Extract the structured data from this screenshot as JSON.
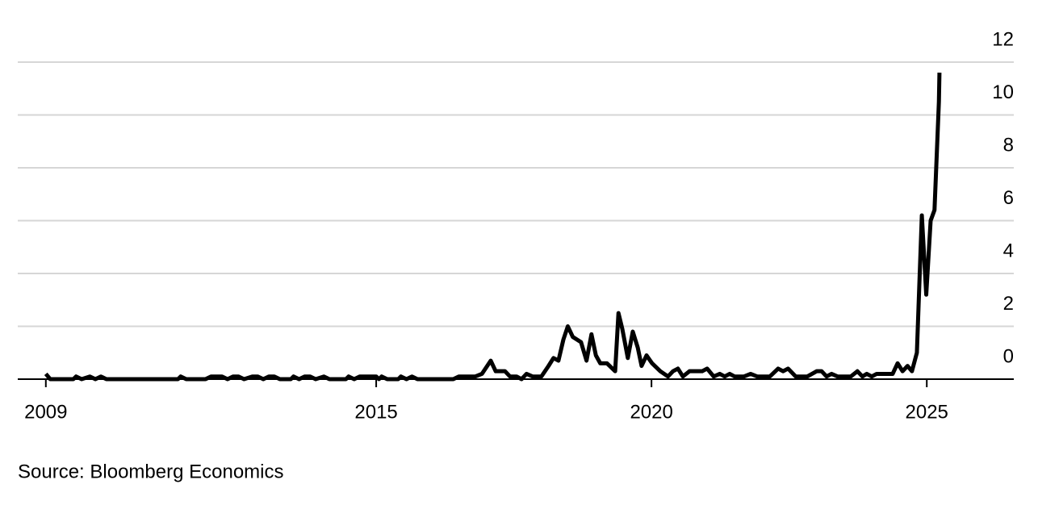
{
  "chart_data": {
    "type": "line",
    "source": "Source: Bloomberg Economics",
    "xlim": [
      2008.49,
      2026.58
    ],
    "xticks": [
      2009,
      2015,
      2020,
      2025
    ],
    "ylim": [
      0,
      12
    ],
    "yticks": [
      0,
      2,
      4,
      6,
      8,
      10,
      12
    ],
    "grid": true,
    "x": [
      2009.0,
      2009.08,
      2009.5,
      2009.55,
      2009.65,
      2009.8,
      2009.9,
      2010.0,
      2010.1,
      2011.4,
      2011.45,
      2011.55,
      2011.9,
      2012.0,
      2012.2,
      2012.3,
      2012.4,
      2012.5,
      2012.6,
      2012.75,
      2012.85,
      2012.95,
      2013.05,
      2013.15,
      2013.25,
      2013.45,
      2013.5,
      2013.6,
      2013.7,
      2013.8,
      2013.9,
      2014.05,
      2014.15,
      2014.45,
      2014.5,
      2014.6,
      2014.7,
      2015.0,
      2015.05,
      2015.1,
      2015.2,
      2015.4,
      2015.45,
      2015.55,
      2015.65,
      2015.75,
      2016.4,
      2016.5,
      2016.8,
      2016.92,
      2017.08,
      2017.17,
      2017.34,
      2017.43,
      2017.55,
      2017.64,
      2017.73,
      2017.84,
      2018.0,
      2018.13,
      2018.22,
      2018.31,
      2018.4,
      2018.48,
      2018.57,
      2018.72,
      2018.82,
      2018.91,
      2018.99,
      2019.07,
      2019.19,
      2019.34,
      2019.4,
      2019.47,
      2019.57,
      2019.66,
      2019.75,
      2019.82,
      2019.91,
      2020.01,
      2020.16,
      2020.3,
      2020.39,
      2020.48,
      2020.57,
      2020.69,
      2020.77,
      2020.92,
      2021.01,
      2021.13,
      2021.24,
      2021.33,
      2021.42,
      2021.51,
      2021.68,
      2021.8,
      2021.92,
      2022.15,
      2022.3,
      2022.39,
      2022.48,
      2022.62,
      2022.83,
      2023.0,
      2023.09,
      2023.18,
      2023.27,
      2023.38,
      2023.62,
      2023.74,
      2023.83,
      2023.91,
      2024.0,
      2024.09,
      2024.38,
      2024.47,
      2024.56,
      2024.65,
      2024.73,
      2024.82,
      2024.91,
      2024.99,
      2025.07,
      2025.14,
      2025.22,
      2025.23
    ],
    "series": [
      {
        "color": "#000000",
        "values": [
          0.2,
          0,
          0,
          0.1,
          0,
          0.1,
          0,
          0.1,
          0,
          0,
          0.1,
          0,
          0,
          0.1,
          0.1,
          0,
          0.1,
          0.1,
          0,
          0.1,
          0.1,
          0,
          0.1,
          0.1,
          0,
          0,
          0.1,
          0,
          0.1,
          0.1,
          0,
          0.1,
          0,
          0,
          0.1,
          0,
          0.1,
          0.1,
          0,
          0.1,
          0,
          0,
          0.1,
          0,
          0.1,
          0,
          0,
          0.1,
          0.1,
          0.2,
          0.7,
          0.3,
          0.3,
          0.1,
          0.1,
          0,
          0.2,
          0.1,
          0.1,
          0.5,
          0.8,
          0.7,
          1.5,
          2.0,
          1.6,
          1.4,
          0.7,
          1.7,
          0.9,
          0.6,
          0.6,
          0.3,
          2.5,
          1.9,
          0.8,
          1.8,
          1.2,
          0.5,
          0.9,
          0.6,
          0.3,
          0.1,
          0.3,
          0.4,
          0.1,
          0.3,
          0.3,
          0.3,
          0.4,
          0.1,
          0.2,
          0.1,
          0.2,
          0.1,
          0.1,
          0.2,
          0.1,
          0.1,
          0.4,
          0.3,
          0.4,
          0.1,
          0.1,
          0.3,
          0.3,
          0.1,
          0.2,
          0.1,
          0.1,
          0.3,
          0.1,
          0.2,
          0.1,
          0.2,
          0.2,
          0.6,
          0.3,
          0.5,
          0.3,
          1.0,
          6.2,
          3.2,
          6.0,
          6.4,
          10.5,
          11.6
        ]
      }
    ]
  }
}
